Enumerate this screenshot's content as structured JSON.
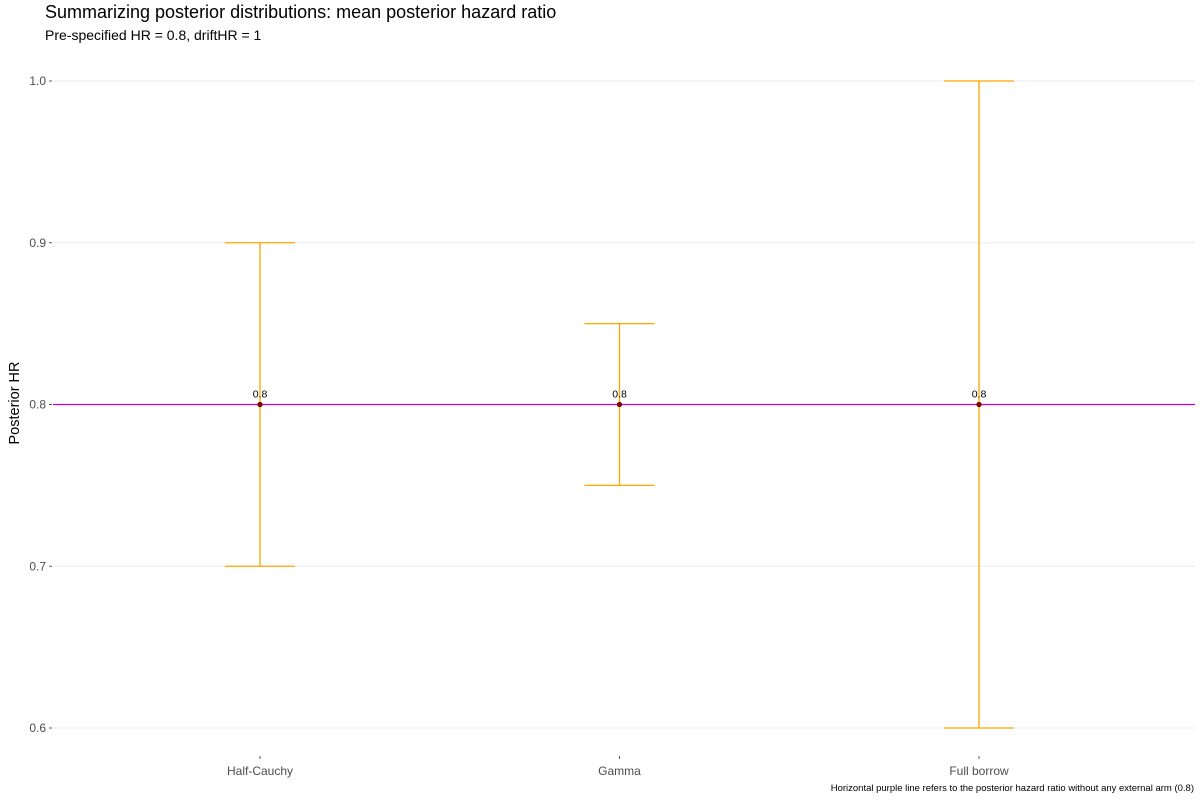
{
  "chart_data": {
    "type": "errorbar",
    "title": "Summarizing posterior distributions: mean posterior hazard ratio",
    "subtitle": "Pre-specified HR = 0.8, driftHR = 1",
    "xlabel": "",
    "ylabel": "Posterior HR",
    "caption": "Horizontal purple line refers to the posterior hazard ratio without any external arm (0.8)",
    "categories": [
      "Half-Cauchy",
      "Gamma",
      "Full borrow"
    ],
    "mean": [
      0.8,
      0.8,
      0.8
    ],
    "lower": [
      0.7,
      0.75,
      0.6
    ],
    "upper": [
      0.9,
      0.85,
      1.0
    ],
    "data_labels": [
      "0.8",
      "0.8",
      "0.8"
    ],
    "reference_line": 0.8,
    "ylim": [
      0.6,
      1.0
    ],
    "yticks": [
      0.6,
      0.7,
      0.8,
      0.9,
      1.0
    ],
    "ytick_labels": [
      "0.6",
      "0.7",
      "0.8",
      "0.9",
      "1.0"
    ],
    "grid": true,
    "colors": {
      "errorbar": "#FFA500",
      "reference_line": "#CC00CC",
      "point": "#8B0000",
      "grid": "#EBEBEB"
    }
  }
}
